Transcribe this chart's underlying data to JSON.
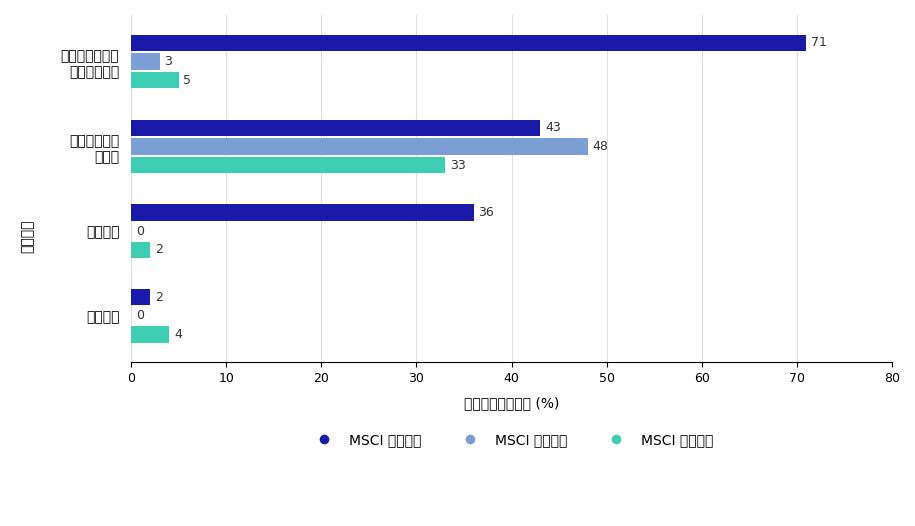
{
  "categories": [
    "董事会多数成员\n独立于管理层",
    "对董事投大量\n反对票",
    "交叉持股",
    "毒丸计划"
  ],
  "series": {
    "MSCI 日本指数": [
      71,
      43,
      36,
      2
    ],
    "MSCI 美国指数": [
      3,
      48,
      0,
      0
    ],
    "MSCI 欧洲指数": [
      5,
      33,
      2,
      4
    ]
  },
  "colors": {
    "MSCI 日本指数": "#1a1aaa",
    "MSCI 美国指数": "#7b9fd4",
    "MSCI 欧洲指数": "#3ecfb2"
  },
  "xlabel": "指标被标记的公司 (%)",
  "ylabel": "治理指标",
  "xlim": [
    0,
    80
  ],
  "xticks": [
    0,
    10,
    20,
    30,
    40,
    50,
    60,
    70,
    80
  ],
  "bar_height": 0.22,
  "background_color": "#ffffff",
  "legend_order": [
    "MSCI 日本指数",
    "MSCI 美国指数",
    "MSCI 欧洲指数"
  ]
}
